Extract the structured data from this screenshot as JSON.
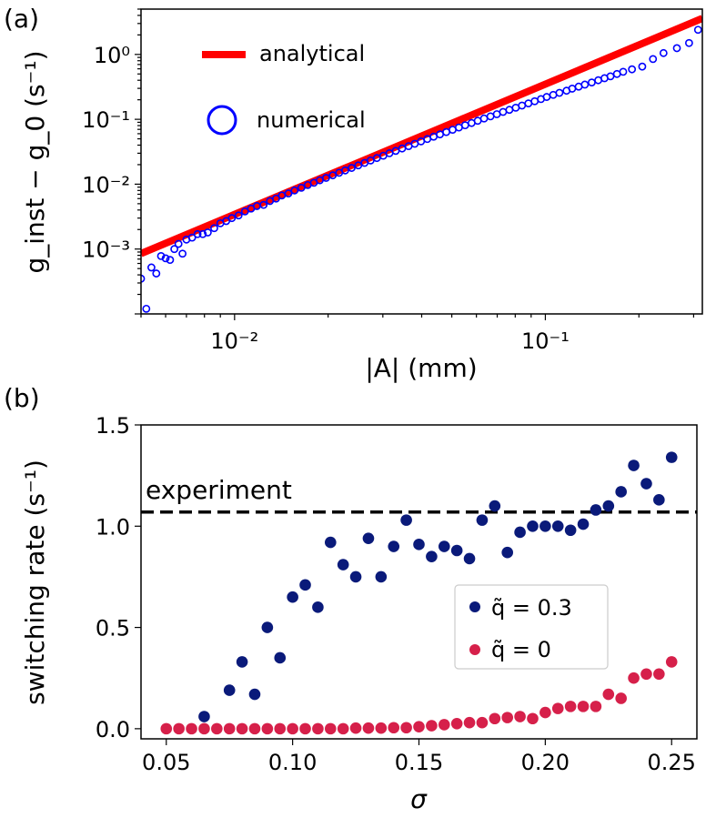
{
  "chart_data": [
    {
      "panel": "(a)",
      "type": "scatter",
      "scale": "log-log",
      "xlabel": "|A| (mm)",
      "ylabel": "g_inst − g_0 (s⁻¹)",
      "xlim": [
        0.005,
        0.32
      ],
      "ylim": [
        0.0001,
        5
      ],
      "x_ticks": [
        {
          "value": 0.01,
          "label": "10⁻²"
        },
        {
          "value": 0.1,
          "label": "10⁻¹"
        }
      ],
      "y_ticks": [
        {
          "value": 0.001,
          "label": "10⁻³"
        },
        {
          "value": 0.01,
          "label": "10⁻²"
        },
        {
          "value": 0.1,
          "label": "10⁻¹"
        },
        {
          "value": 1,
          "label": "10⁰"
        }
      ],
      "legend": [
        {
          "label": "analytical",
          "style": "line",
          "color": "#ff0000"
        },
        {
          "label": "numerical",
          "style": "open-circle",
          "color": "#0000ff"
        }
      ],
      "series": [
        {
          "name": "analytical",
          "kind": "line",
          "color": "#ff0000",
          "x": [
            0.005,
            0.32
          ],
          "y": [
            0.00085,
            3.6
          ]
        },
        {
          "name": "numerical",
          "kind": "scatter",
          "marker": "open-circle",
          "color": "#0000ff",
          "points": [
            [
              0.005,
              0.00035
            ],
            [
              0.0052,
              0.00012
            ],
            [
              0.0054,
              0.00052
            ],
            [
              0.0056,
              0.00042
            ],
            [
              0.0058,
              0.00078
            ],
            [
              0.006,
              0.00072
            ],
            [
              0.0062,
              0.00068
            ],
            [
              0.0064,
              0.001
            ],
            [
              0.0066,
              0.0012
            ],
            [
              0.0068,
              0.00085
            ],
            [
              0.007,
              0.0014
            ],
            [
              0.0073,
              0.0015
            ],
            [
              0.0076,
              0.0017
            ],
            [
              0.0079,
              0.0017
            ],
            [
              0.0082,
              0.0018
            ],
            [
              0.0086,
              0.0021
            ],
            [
              0.009,
              0.0025
            ],
            [
              0.0094,
              0.0027
            ],
            [
              0.0098,
              0.003
            ],
            [
              0.0103,
              0.0033
            ],
            [
              0.0108,
              0.0038
            ],
            [
              0.0113,
              0.0042
            ],
            [
              0.0118,
              0.0046
            ],
            [
              0.0124,
              0.0048
            ],
            [
              0.013,
              0.0055
            ],
            [
              0.0136,
              0.006
            ],
            [
              0.0142,
              0.0067
            ],
            [
              0.0149,
              0.0072
            ],
            [
              0.0156,
              0.008
            ],
            [
              0.0164,
              0.0088
            ],
            [
              0.0172,
              0.0097
            ],
            [
              0.018,
              0.0105
            ],
            [
              0.0188,
              0.0115
            ],
            [
              0.0197,
              0.0125
            ],
            [
              0.0207,
              0.0137
            ],
            [
              0.0217,
              0.015
            ],
            [
              0.0227,
              0.0163
            ],
            [
              0.0238,
              0.0178
            ],
            [
              0.025,
              0.0195
            ],
            [
              0.0262,
              0.0213
            ],
            [
              0.0274,
              0.0232
            ],
            [
              0.0287,
              0.0253
            ],
            [
              0.0301,
              0.0275
            ],
            [
              0.0315,
              0.03
            ],
            [
              0.033,
              0.0326
            ],
            [
              0.0346,
              0.0355
            ],
            [
              0.0363,
              0.0386
            ],
            [
              0.038,
              0.042
            ],
            [
              0.0398,
              0.0457
            ],
            [
              0.0417,
              0.0497
            ],
            [
              0.0437,
              0.054
            ],
            [
              0.0458,
              0.0586
            ],
            [
              0.048,
              0.0636
            ],
            [
              0.0503,
              0.069
            ],
            [
              0.0527,
              0.0748
            ],
            [
              0.0552,
              0.081
            ],
            [
              0.0579,
              0.0877
            ],
            [
              0.0606,
              0.095
            ],
            [
              0.0635,
              0.103
            ],
            [
              0.0666,
              0.111
            ],
            [
              0.0698,
              0.12
            ],
            [
              0.0731,
              0.13
            ],
            [
              0.0766,
              0.14
            ],
            [
              0.0803,
              0.151
            ],
            [
              0.0841,
              0.163
            ],
            [
              0.0882,
              0.176
            ],
            [
              0.0924,
              0.19
            ],
            [
              0.0968,
              0.205
            ],
            [
              0.101,
              0.221
            ],
            [
              0.106,
              0.238
            ],
            [
              0.111,
              0.256
            ],
            [
              0.117,
              0.276
            ],
            [
              0.122,
              0.297
            ],
            [
              0.128,
              0.319
            ],
            [
              0.134,
              0.343
            ],
            [
              0.141,
              0.37
            ],
            [
              0.148,
              0.4
            ],
            [
              0.155,
              0.43
            ],
            [
              0.162,
              0.46
            ],
            [
              0.17,
              0.5
            ],
            [
              0.178,
              0.54
            ],
            [
              0.19,
              0.59
            ],
            [
              0.205,
              0.65
            ],
            [
              0.222,
              0.85
            ],
            [
              0.24,
              1.05
            ],
            [
              0.265,
              1.25
            ],
            [
              0.29,
              1.5
            ],
            [
              0.31,
              2.4
            ]
          ]
        }
      ]
    },
    {
      "panel": "(b)",
      "type": "scatter",
      "xlabel": "σ",
      "ylabel": "switching rate (s⁻¹)",
      "xlim": [
        0.04,
        0.26
      ],
      "ylim": [
        -0.05,
        1.5
      ],
      "x_ticks": [
        {
          "value": 0.05,
          "label": "0.05"
        },
        {
          "value": 0.1,
          "label": "0.10"
        },
        {
          "value": 0.15,
          "label": "0.15"
        },
        {
          "value": 0.2,
          "label": "0.20"
        },
        {
          "value": 0.25,
          "label": "0.25"
        }
      ],
      "y_ticks": [
        {
          "value": 0.0,
          "label": "0.0"
        },
        {
          "value": 0.5,
          "label": "0.5"
        },
        {
          "value": 1.0,
          "label": "1.0"
        },
        {
          "value": 1.5,
          "label": "1.5"
        }
      ],
      "reference_line": {
        "label": "experiment",
        "value": 1.07,
        "style": "dashed",
        "color": "#000000"
      },
      "legend": [
        {
          "label": "q̃ = 0.3",
          "color": "#0a1a7a"
        },
        {
          "label": "q̃ = 0",
          "color": "#d6204a"
        }
      ],
      "series": [
        {
          "name": "q̃ = 0.3",
          "color": "#0a1a7a",
          "x": [
            0.065,
            0.075,
            0.08,
            0.085,
            0.09,
            0.095,
            0.1,
            0.105,
            0.11,
            0.115,
            0.12,
            0.125,
            0.13,
            0.135,
            0.14,
            0.145,
            0.15,
            0.155,
            0.16,
            0.165,
            0.17,
            0.175,
            0.18,
            0.185,
            0.19,
            0.195,
            0.2,
            0.205,
            0.21,
            0.215,
            0.22,
            0.225,
            0.23,
            0.235,
            0.24,
            0.245,
            0.25
          ],
          "y": [
            0.06,
            0.19,
            0.33,
            0.17,
            0.5,
            0.35,
            0.65,
            0.71,
            0.6,
            0.92,
            0.81,
            0.75,
            0.94,
            0.75,
            0.9,
            1.03,
            0.91,
            0.85,
            0.9,
            0.88,
            0.84,
            1.03,
            1.1,
            0.87,
            0.97,
            1.0,
            1.0,
            1.0,
            0.98,
            1.01,
            1.08,
            1.1,
            1.17,
            1.3,
            1.21,
            1.13,
            1.34
          ]
        },
        {
          "name": "q̃ = 0",
          "color": "#d6204a",
          "x": [
            0.05,
            0.055,
            0.06,
            0.065,
            0.07,
            0.075,
            0.08,
            0.085,
            0.09,
            0.095,
            0.1,
            0.105,
            0.11,
            0.115,
            0.12,
            0.125,
            0.13,
            0.135,
            0.14,
            0.145,
            0.15,
            0.155,
            0.16,
            0.165,
            0.17,
            0.175,
            0.18,
            0.185,
            0.19,
            0.195,
            0.2,
            0.205,
            0.21,
            0.215,
            0.22,
            0.225,
            0.23,
            0.235,
            0.24,
            0.245,
            0.25
          ],
          "y": [
            0,
            0,
            0,
            0,
            0,
            0,
            0,
            0,
            0,
            0,
            0,
            0,
            0,
            0,
            0,
            0.003,
            0.003,
            0.003,
            0.005,
            0.005,
            0.01,
            0.015,
            0.02,
            0.025,
            0.03,
            0.03,
            0.05,
            0.055,
            0.06,
            0.05,
            0.08,
            0.1,
            0.11,
            0.11,
            0.11,
            0.17,
            0.15,
            0.25,
            0.27,
            0.27,
            0.33
          ]
        }
      ]
    }
  ]
}
